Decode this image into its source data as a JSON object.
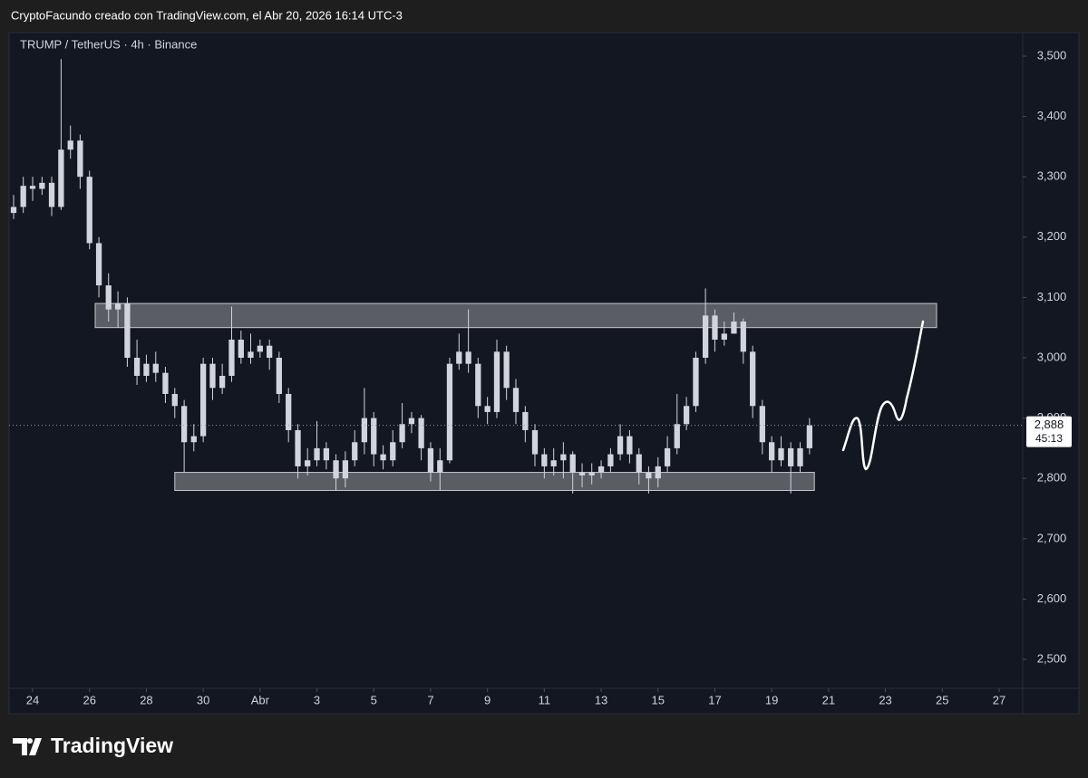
{
  "header": "CryptoFacundo creado con TradingView.com, el Abr 20, 2026 16:14 UTC-3",
  "footer": "TradingView",
  "chart_data": {
    "type": "candlestick",
    "title": "TRUMP / TetherUS · 4h · Binance",
    "up_color": "#d1d4dc",
    "down_color": "#d1d4dc",
    "xlim": [
      -0.83,
      34.83
    ],
    "ylim": [
      2452,
      3539
    ],
    "xticks": [
      {
        "value": 0,
        "label": "24"
      },
      {
        "value": 2,
        "label": "26"
      },
      {
        "value": 4,
        "label": "28"
      },
      {
        "value": 6,
        "label": "30"
      },
      {
        "value": 8,
        "label": "Abr"
      },
      {
        "value": 10,
        "label": "3"
      },
      {
        "value": 12,
        "label": "5"
      },
      {
        "value": 14,
        "label": "7"
      },
      {
        "value": 16,
        "label": "9"
      },
      {
        "value": 18,
        "label": "11"
      },
      {
        "value": 20,
        "label": "13"
      },
      {
        "value": 22,
        "label": "15"
      },
      {
        "value": 24,
        "label": "17"
      },
      {
        "value": 26,
        "label": "19"
      },
      {
        "value": 28,
        "label": "21"
      },
      {
        "value": 30,
        "label": "23"
      },
      {
        "value": 32,
        "label": "25"
      },
      {
        "value": 34,
        "label": "27"
      }
    ],
    "yticks": [
      {
        "value": 2500,
        "label": "2,500"
      },
      {
        "value": 2600,
        "label": "2,600"
      },
      {
        "value": 2700,
        "label": "2,700"
      },
      {
        "value": 2800,
        "label": "2,800"
      },
      {
        "value": 2900,
        "label": "2,900"
      },
      {
        "value": 3000,
        "label": "3,000"
      },
      {
        "value": 3100,
        "label": "3,100"
      },
      {
        "value": 3200,
        "label": "3,200"
      },
      {
        "value": 3300,
        "label": "3,300"
      },
      {
        "value": 3400,
        "label": "3,400"
      },
      {
        "value": 3500,
        "label": "3,500"
      }
    ],
    "x": [
      -0.67,
      -0.33,
      0,
      0.33,
      0.67,
      1,
      1.33,
      1.67,
      2,
      2.33,
      2.67,
      3,
      3.33,
      3.67,
      4,
      4.33,
      4.67,
      5,
      5.33,
      5.67,
      6,
      6.33,
      6.67,
      7,
      7.33,
      7.67,
      8,
      8.33,
      8.67,
      9,
      9.33,
      9.67,
      10,
      10.33,
      10.67,
      11,
      11.33,
      11.67,
      12,
      12.33,
      12.67,
      13,
      13.33,
      13.67,
      14,
      14.33,
      14.67,
      15,
      15.33,
      15.67,
      16,
      16.33,
      16.67,
      17,
      17.33,
      17.67,
      18,
      18.33,
      18.67,
      19,
      19.33,
      19.67,
      20,
      20.33,
      20.67,
      21,
      21.33,
      21.67,
      22,
      22.33,
      22.67,
      23,
      23.33,
      23.67,
      24,
      24.33,
      24.67,
      25,
      25.33,
      25.67,
      26,
      26.33,
      26.67,
      27,
      27.33
    ],
    "open": [
      3240,
      3250,
      3285,
      3280,
      3290,
      3250,
      3345,
      3360,
      3300,
      3190,
      3120,
      3080,
      3090,
      3000,
      2970,
      2990,
      2975,
      2940,
      2920,
      2860,
      2870,
      2990,
      2950,
      2970,
      3030,
      3000,
      3010,
      3020,
      3000,
      2940,
      2880,
      2820,
      2830,
      2850,
      2830,
      2800,
      2830,
      2860,
      2900,
      2840,
      2830,
      2860,
      2890,
      2900,
      2850,
      2810,
      2830,
      2990,
      3010,
      2990,
      2920,
      2910,
      3010,
      2950,
      2910,
      2880,
      2840,
      2820,
      2830,
      2840,
      2810,
      2805,
      2810,
      2820,
      2840,
      2870,
      2840,
      2810,
      2800,
      2820,
      2850,
      2890,
      2920,
      3000,
      3070,
      3030,
      3040,
      3060,
      3010,
      2920,
      2860,
      2830,
      2850,
      2820,
      2850
    ],
    "high": [
      3270,
      3300,
      3300,
      3300,
      3300,
      3495,
      3385,
      3370,
      3310,
      3200,
      3140,
      3110,
      3100,
      3030,
      3005,
      3010,
      2985,
      2950,
      2930,
      2890,
      3000,
      3000,
      2990,
      3085,
      3045,
      3040,
      3030,
      3030,
      3010,
      2950,
      2890,
      2850,
      2895,
      2860,
      2840,
      2845,
      2880,
      2950,
      2910,
      2855,
      2880,
      2925,
      2910,
      2905,
      2860,
      2850,
      3000,
      3040,
      3080,
      3000,
      2935,
      3030,
      3020,
      2965,
      2920,
      2890,
      2850,
      2850,
      2860,
      2845,
      2825,
      2825,
      2830,
      2850,
      2890,
      2880,
      2850,
      2820,
      2835,
      2870,
      2940,
      2935,
      3010,
      3115,
      3080,
      3060,
      3075,
      3065,
      3020,
      2930,
      2870,
      2870,
      2860,
      2860,
      2900
    ],
    "low": [
      3230,
      3240,
      3260,
      3270,
      3235,
      3245,
      3330,
      3280,
      3180,
      3100,
      3060,
      3050,
      2985,
      2955,
      2960,
      2960,
      2925,
      2900,
      2810,
      2845,
      2860,
      2930,
      2940,
      2960,
      2990,
      2990,
      3000,
      2980,
      2925,
      2860,
      2800,
      2805,
      2820,
      2815,
      2780,
      2785,
      2820,
      2840,
      2820,
      2815,
      2820,
      2850,
      2875,
      2830,
      2795,
      2780,
      2825,
      2980,
      2975,
      2900,
      2890,
      2900,
      2930,
      2890,
      2860,
      2820,
      2800,
      2805,
      2800,
      2775,
      2785,
      2790,
      2800,
      2810,
      2830,
      2825,
      2790,
      2775,
      2785,
      2810,
      2840,
      2880,
      2910,
      2990,
      3010,
      3020,
      3040,
      2990,
      2900,
      2840,
      2810,
      2820,
      2775,
      2810,
      2840
    ],
    "close": [
      3250,
      3285,
      3280,
      3290,
      3250,
      3345,
      3360,
      3300,
      3190,
      3120,
      3080,
      3090,
      3000,
      2970,
      2990,
      2975,
      2940,
      2920,
      2860,
      2870,
      2990,
      2950,
      2970,
      3030,
      3000,
      3010,
      3020,
      3000,
      2940,
      2880,
      2820,
      2830,
      2850,
      2830,
      2800,
      2830,
      2860,
      2900,
      2840,
      2830,
      2860,
      2890,
      2900,
      2850,
      2810,
      2830,
      2990,
      3010,
      2990,
      2920,
      2910,
      3010,
      2950,
      2910,
      2880,
      2840,
      2820,
      2830,
      2840,
      2810,
      2805,
      2810,
      2820,
      2840,
      2870,
      2840,
      2810,
      2800,
      2820,
      2850,
      2890,
      2920,
      3000,
      3070,
      3030,
      3040,
      3060,
      3010,
      2920,
      2860,
      2830,
      2850,
      2820,
      2850,
      2888
    ],
    "zones": [
      {
        "from": 2.2,
        "to": 31.8,
        "low": 3050,
        "high": 3090
      },
      {
        "from": 5.0,
        "to": 27.5,
        "low": 2780,
        "high": 2810
      }
    ],
    "last_price": {
      "value": 2888,
      "label": "2,888"
    },
    "countdown": "45:13"
  }
}
